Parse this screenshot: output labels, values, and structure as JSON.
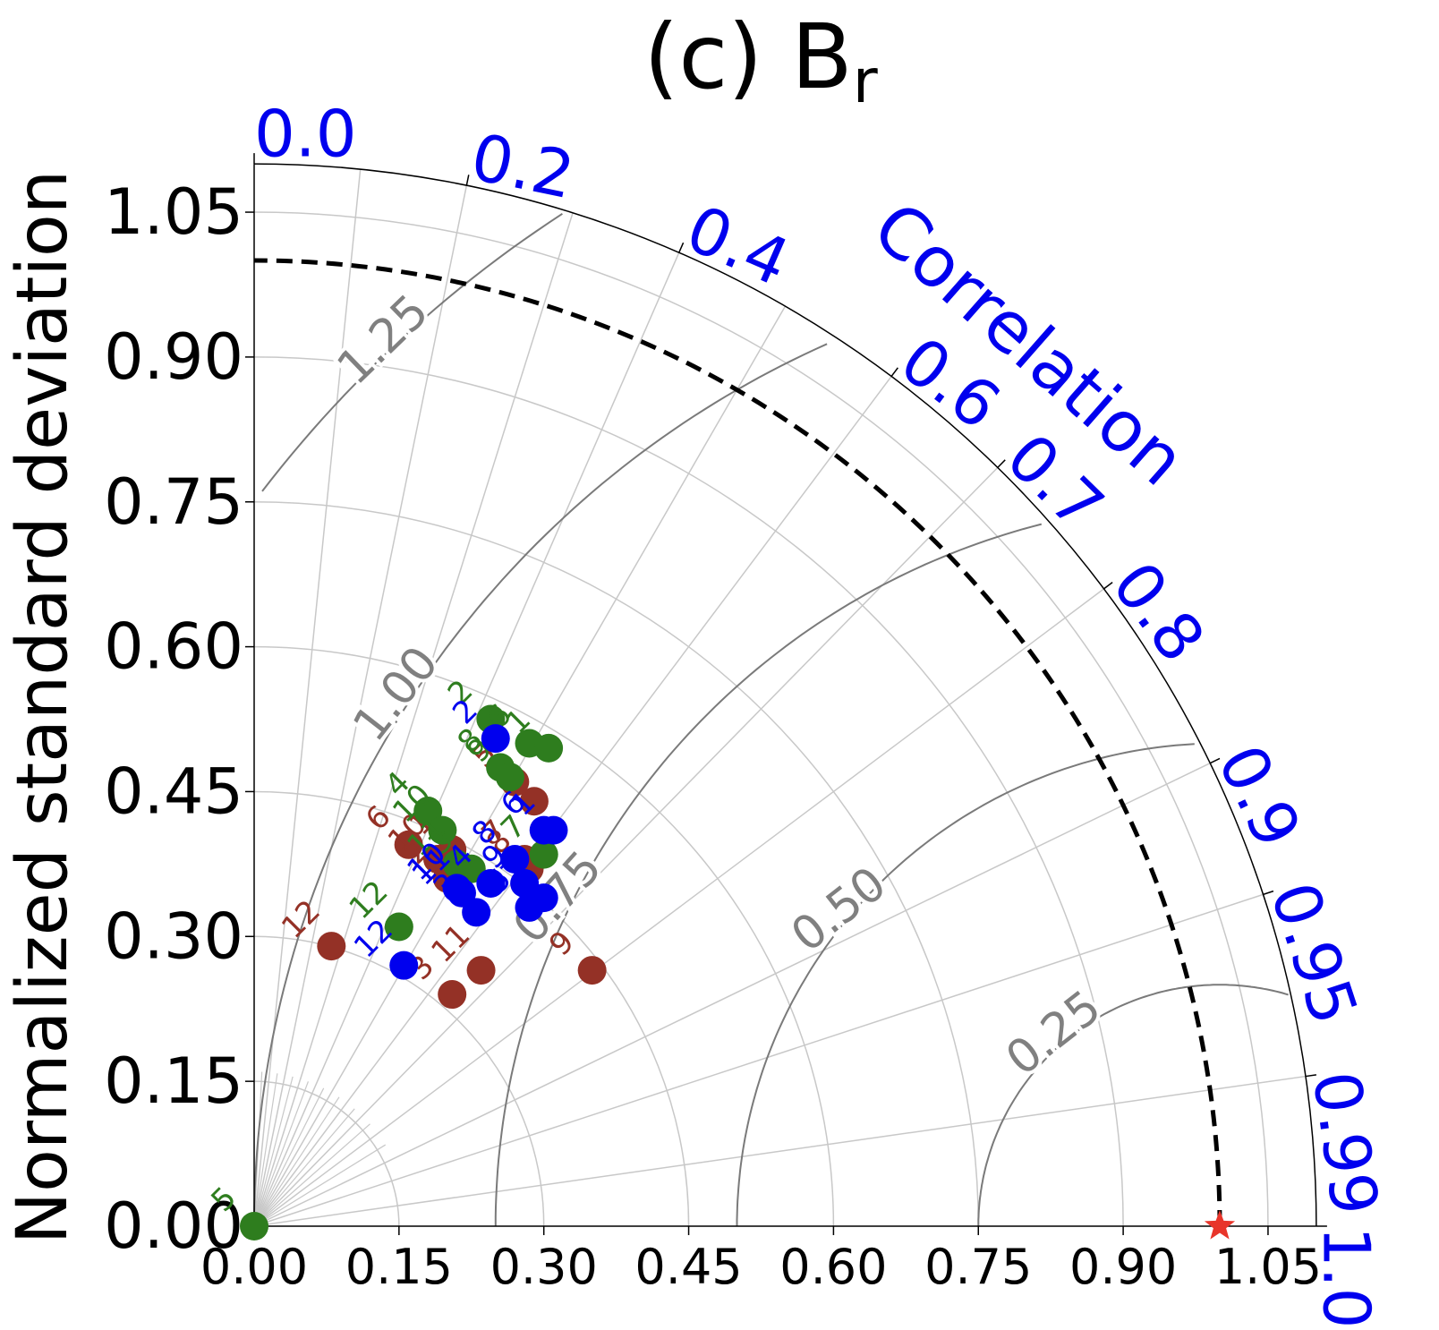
{
  "chart_data": {
    "type": "scatter",
    "subtype": "taylor-diagram",
    "title": "(c) B",
    "title_subscript": "r",
    "ylabel": "Normalized standard deviation",
    "xlabel": "",
    "std_range": [
      0,
      1.1
    ],
    "x_ticks": [
      "0.00",
      "0.15",
      "0.30",
      "0.45",
      "0.60",
      "0.75",
      "0.90",
      "1.05"
    ],
    "y_ticks": [
      "0.00",
      "0.15",
      "0.30",
      "0.45",
      "0.60",
      "0.75",
      "0.90",
      "1.05"
    ],
    "correlation_label": "Correlation",
    "correlation_ticks": [
      "0.0",
      "0.2",
      "0.4",
      "0.6",
      "0.7",
      "0.8",
      "0.9",
      "0.95",
      "0.99",
      "1.0"
    ],
    "rms_contours": [
      "0.25",
      "0.50",
      "0.75",
      "1.00",
      "1.25"
    ],
    "reference": {
      "std": 1.0,
      "marker": "star"
    },
    "colors": {
      "red": "#943126",
      "green": "#2e7d1e",
      "blue": "#0000ee",
      "accent": "#0000ee",
      "star": "#e8352a"
    },
    "series": [
      {
        "name": "red",
        "color": "#943126",
        "points": [
          {
            "label": "12",
            "x": 0.08,
            "y": 0.29
          },
          {
            "label": "3",
            "x": 0.205,
            "y": 0.24
          },
          {
            "label": "11",
            "x": 0.235,
            "y": 0.265
          },
          {
            "label": "9",
            "x": 0.35,
            "y": 0.265
          },
          {
            "label": "6",
            "x": 0.16,
            "y": 0.395
          },
          {
            "label": "1",
            "x": 0.205,
            "y": 0.39
          },
          {
            "label": "10",
            "x": 0.19,
            "y": 0.38
          },
          {
            "label": "2",
            "x": 0.2,
            "y": 0.36
          },
          {
            "label": "5",
            "x": 0.27,
            "y": 0.46
          },
          {
            "label": "4",
            "x": 0.29,
            "y": 0.44
          },
          {
            "label": "8",
            "x": 0.285,
            "y": 0.37
          },
          {
            "label": "7",
            "x": 0.28,
            "y": 0.38
          }
        ]
      },
      {
        "name": "green",
        "color": "#2e7d1e",
        "points": [
          {
            "label": "5",
            "x": 0.0,
            "y": 0.0
          },
          {
            "label": "12",
            "x": 0.15,
            "y": 0.31
          },
          {
            "label": "4",
            "x": 0.18,
            "y": 0.43
          },
          {
            "label": "10",
            "x": 0.195,
            "y": 0.41
          },
          {
            "label": "11",
            "x": 0.21,
            "y": 0.375
          },
          {
            "label": "3",
            "x": 0.225,
            "y": 0.37
          },
          {
            "label": "2",
            "x": 0.245,
            "y": 0.525
          },
          {
            "label": "6",
            "x": 0.285,
            "y": 0.5
          },
          {
            "label": "1",
            "x": 0.305,
            "y": 0.495
          },
          {
            "label": "8",
            "x": 0.255,
            "y": 0.475
          },
          {
            "label": "7",
            "x": 0.3,
            "y": 0.385
          },
          {
            "label": "9",
            "x": 0.265,
            "y": 0.465
          }
        ]
      },
      {
        "name": "blue",
        "color": "#0000ee",
        "points": [
          {
            "label": "12",
            "x": 0.155,
            "y": 0.27
          },
          {
            "label": "2",
            "x": 0.25,
            "y": 0.505
          },
          {
            "label": "6",
            "x": 0.3,
            "y": 0.41
          },
          {
            "label": "1",
            "x": 0.31,
            "y": 0.41
          },
          {
            "label": "8",
            "x": 0.27,
            "y": 0.38
          },
          {
            "label": "9",
            "x": 0.28,
            "y": 0.355
          },
          {
            "label": "7",
            "x": 0.3,
            "y": 0.34
          },
          {
            "label": "5",
            "x": 0.285,
            "y": 0.33
          },
          {
            "label": "4",
            "x": 0.245,
            "y": 0.355
          },
          {
            "label": "10",
            "x": 0.21,
            "y": 0.35
          },
          {
            "label": "11",
            "x": 0.215,
            "y": 0.345
          },
          {
            "label": "3",
            "x": 0.23,
            "y": 0.325
          }
        ]
      }
    ]
  }
}
